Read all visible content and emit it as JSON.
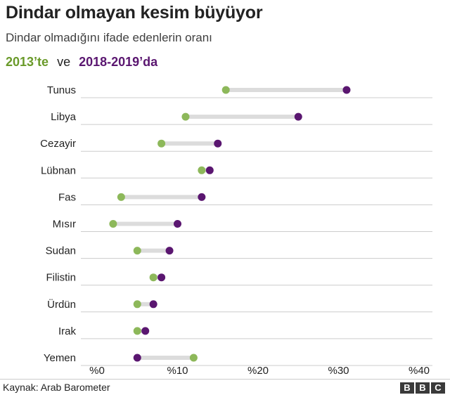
{
  "title": "Dindar olmayan kesim büyüyor",
  "subtitle": "Dindar olmadığını ifade edenlerin oranı",
  "legend": {
    "series1_label": "2013’te",
    "connector": "ve",
    "series2_label": "2018-2019’da"
  },
  "footer": {
    "source": "Kaynak: Arab Barometer",
    "logo": [
      "B",
      "B",
      "C"
    ]
  },
  "colors": {
    "series1": "#8db85a",
    "series2": "#5a1670",
    "range_bar": "#dcdcdc",
    "gridline": "#cccccc"
  },
  "chart_data": {
    "type": "dumbbell",
    "categories": [
      "Tunus",
      "Libya",
      "Cezayir",
      "Lübnan",
      "Fas",
      "Mısır",
      "Sudan",
      "Filistin",
      "Ürdün",
      "Irak",
      "Yemen"
    ],
    "series": [
      {
        "name": "2013’te",
        "values": [
          16,
          11,
          8,
          13,
          3,
          2,
          5,
          7,
          5,
          5,
          12
        ]
      },
      {
        "name": "2018-2019’da",
        "values": [
          31,
          25,
          15,
          14,
          13,
          10,
          9,
          8,
          7,
          6,
          5
        ]
      }
    ],
    "x_tick_labels": [
      "%0",
      "%10",
      "%20",
      "%30",
      "%40"
    ],
    "x_ticks": [
      0,
      10,
      20,
      30,
      40
    ],
    "xlim": [
      0,
      40
    ],
    "grid": true
  }
}
